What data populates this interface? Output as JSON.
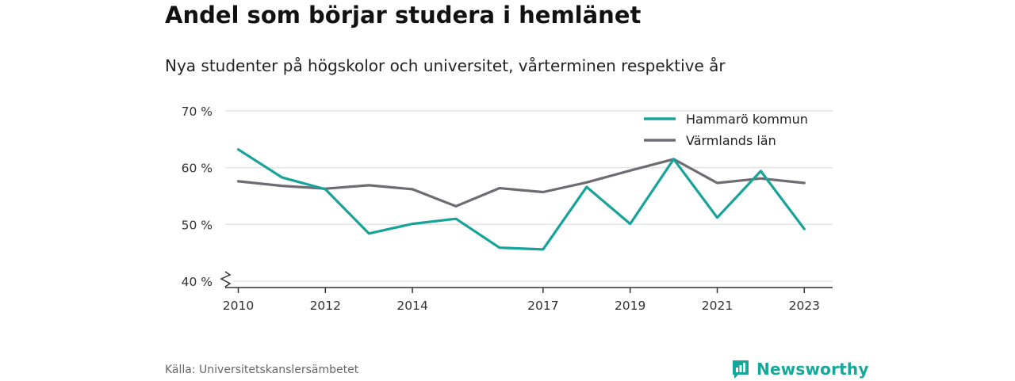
{
  "header": {
    "title": "Andel som börjar studera i hemlänet",
    "subtitle": "Nya studenter på högskolor och universitet, vårterminen respektive år"
  },
  "footer": {
    "source": "Källa: Universitetskanslersämbetet",
    "brand": "Newsworthy",
    "brand_icon": "bar-chart-logo-icon"
  },
  "colors": {
    "hammaro": "#17a39a",
    "varmland": "#6e6c72",
    "grid": "#dddddd",
    "brand": "#14a89a"
  },
  "chart_data": {
    "type": "line",
    "x": [
      2010,
      2011,
      2012,
      2013,
      2014,
      2015,
      2016,
      2017,
      2018,
      2019,
      2020,
      2021,
      2022,
      2023
    ],
    "xticks": [
      2010,
      2012,
      2014,
      2017,
      2019,
      2021,
      2023
    ],
    "xtick_labels": [
      "2010",
      "2012",
      "2014",
      "2017",
      "2019",
      "2021",
      "2023"
    ],
    "yticks": [
      40,
      50,
      60,
      70
    ],
    "ytick_labels": [
      "40 %",
      "50 %",
      "60 %",
      "70 %"
    ],
    "ylim": [
      40,
      70
    ],
    "xlim": [
      2009.7,
      2023.65
    ],
    "y_axis_break": true,
    "grid": true,
    "legend_position": "top-right",
    "series": [
      {
        "name": "Hammarö kommun",
        "color": "#17a39a",
        "values": [
          63.2,
          58.3,
          56.2,
          48.4,
          50.1,
          51.0,
          45.9,
          45.6,
          56.6,
          50.1,
          61.5,
          51.2,
          59.4,
          49.2
        ]
      },
      {
        "name": "Värmlands län",
        "color": "#6e6c72",
        "values": [
          57.6,
          56.8,
          56.3,
          56.9,
          56.2,
          53.2,
          56.4,
          55.7,
          57.4,
          59.5,
          61.5,
          57.3,
          58.1,
          57.3
        ]
      }
    ]
  }
}
